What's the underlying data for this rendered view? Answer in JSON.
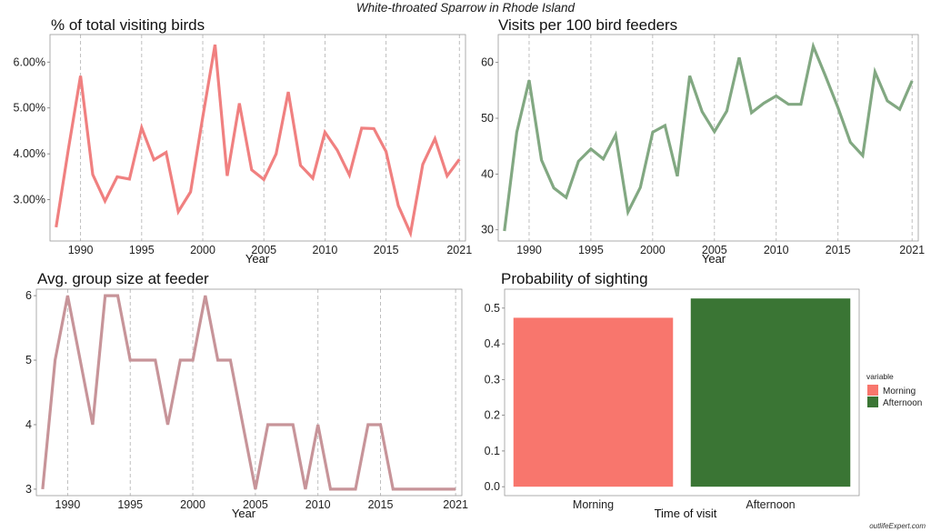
{
  "figure": {
    "suptitle": "White-throated Sparrow in Rhode Island",
    "watermark": "outlifeExpert.com",
    "legend": {
      "title": "variable",
      "placement": "right",
      "items": [
        {
          "label": "Morning",
          "color": "#f8766d"
        },
        {
          "label": "Afternoon",
          "color": "#3a7534"
        }
      ]
    }
  },
  "chart_data": [
    {
      "type": "line",
      "title": "% of total visiting birds",
      "xlabel": "Year",
      "ylabel": "",
      "color": "#f08080",
      "xlim": [
        1987.5,
        2021.5
      ],
      "ylim": [
        2.1,
        6.6
      ],
      "x_ticks": [
        1990,
        1995,
        2000,
        2005,
        2010,
        2015,
        2021
      ],
      "y_ticks": [
        3.0,
        4.0,
        5.0,
        6.0
      ],
      "y_tick_labels": [
        "3.00%",
        "4.00%",
        "5.00%",
        "6.00%"
      ],
      "x": [
        1988,
        1989,
        1990,
        1991,
        1992,
        1993,
        1994,
        1995,
        1996,
        1997,
        1998,
        1999,
        2000,
        2001,
        2002,
        2003,
        2004,
        2005,
        2006,
        2007,
        2008,
        2009,
        2010,
        2011,
        2012,
        2013,
        2014,
        2015,
        2016,
        2017,
        2018,
        2019,
        2020,
        2021
      ],
      "y": [
        2.4,
        4.1,
        5.7,
        3.55,
        2.97,
        3.5,
        3.45,
        4.57,
        3.87,
        4.03,
        2.74,
        3.17,
        4.8,
        6.38,
        3.52,
        5.1,
        3.65,
        3.44,
        4.0,
        5.35,
        3.75,
        3.47,
        4.47,
        4.08,
        3.54,
        4.56,
        4.55,
        4.05,
        2.87,
        2.27,
        3.77,
        4.33,
        3.52,
        3.88
      ]
    },
    {
      "type": "line",
      "title": "Visits per 100 bird feeders",
      "xlabel": "Year",
      "ylabel": "",
      "color": "#82a882",
      "xlim": [
        1987.5,
        2021.5
      ],
      "ylim": [
        28,
        65
      ],
      "x_ticks": [
        1990,
        1995,
        2000,
        2005,
        2010,
        2015,
        2021
      ],
      "y_ticks": [
        30,
        40,
        50,
        60
      ],
      "y_tick_labels": [
        "30",
        "40",
        "50",
        "60"
      ],
      "x": [
        1988,
        1989,
        1990,
        1991,
        1992,
        1993,
        1994,
        1995,
        1996,
        1997,
        1998,
        1999,
        2000,
        2001,
        2002,
        2003,
        2004,
        2005,
        2006,
        2007,
        2008,
        2009,
        2010,
        2011,
        2012,
        2013,
        2014,
        2015,
        2016,
        2017,
        2018,
        2019,
        2020,
        2021
      ],
      "y": [
        29.8,
        47.5,
        56.8,
        42.5,
        37.5,
        35.8,
        42.3,
        44.5,
        42.7,
        47.0,
        33.2,
        37.6,
        47.5,
        48.7,
        39.6,
        57.6,
        51.2,
        47.6,
        51.3,
        60.9,
        51.0,
        52.7,
        54.0,
        52.5,
        52.5,
        62.9,
        57.5,
        51.9,
        45.7,
        43.3,
        58.3,
        53.1,
        51.6,
        56.7
      ]
    },
    {
      "type": "line",
      "title": "Avg. group size at feeder",
      "xlabel": "Year",
      "ylabel": "",
      "color": "#c79499",
      "xlim": [
        1987.5,
        2021.5
      ],
      "ylim": [
        2.9,
        6.1
      ],
      "x_ticks": [
        1990,
        1995,
        2000,
        2005,
        2010,
        2015,
        2021
      ],
      "y_ticks": [
        3,
        4,
        5,
        6
      ],
      "y_tick_labels": [
        "3",
        "4",
        "5",
        "6"
      ],
      "x": [
        1988,
        1989,
        1990,
        1991,
        1992,
        1993,
        1994,
        1995,
        1996,
        1997,
        1998,
        1999,
        2000,
        2001,
        2002,
        2003,
        2004,
        2005,
        2006,
        2007,
        2008,
        2009,
        2010,
        2011,
        2012,
        2013,
        2014,
        2015,
        2016,
        2017,
        2018,
        2019,
        2020,
        2021
      ],
      "y": [
        3,
        5,
        6,
        5,
        4,
        6,
        6,
        5,
        5,
        5,
        4,
        5,
        5,
        6,
        5,
        5,
        4,
        3,
        4,
        4,
        4,
        3,
        4,
        3,
        3,
        3,
        4,
        4,
        3,
        3,
        3,
        3,
        3,
        3
      ]
    },
    {
      "type": "bar",
      "title": "Probability of sighting",
      "xlabel": "Time of visit",
      "ylabel": "",
      "categories": [
        "Morning",
        "Afternoon"
      ],
      "values": [
        0.473,
        0.527
      ],
      "colors": [
        "#f8766d",
        "#3a7534"
      ],
      "ylim": [
        -0.025,
        0.553
      ],
      "y_ticks": [
        0.0,
        0.1,
        0.2,
        0.3,
        0.4,
        0.5
      ],
      "y_tick_labels": [
        "0.0",
        "0.1",
        "0.2",
        "0.3",
        "0.4",
        "0.5"
      ]
    }
  ]
}
